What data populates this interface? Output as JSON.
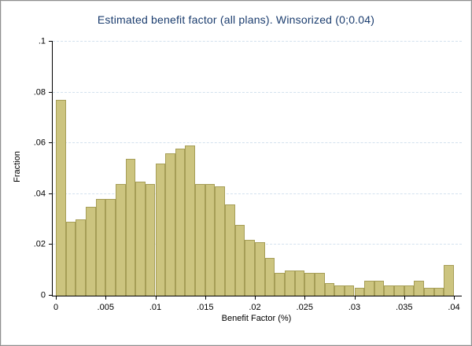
{
  "chart_data": {
    "type": "bar",
    "subtype": "histogram",
    "title": "Estimated benefit factor (all plans). Winsorized (0;0.04)",
    "xlabel": "Benefit Factor (%)",
    "ylabel": "Fraction",
    "xlim": [
      0,
      0.0405
    ],
    "ylim": [
      0,
      0.1
    ],
    "bin_start": 0,
    "bin_width": 0.001,
    "n_bins": 40,
    "values": [
      0.077,
      0.029,
      0.03,
      0.035,
      0.038,
      0.038,
      0.044,
      0.054,
      0.045,
      0.044,
      0.052,
      0.056,
      0.058,
      0.059,
      0.044,
      0.044,
      0.043,
      0.036,
      0.028,
      0.022,
      0.021,
      0.015,
      0.009,
      0.01,
      0.01,
      0.009,
      0.009,
      0.005,
      0.004,
      0.004,
      0.003,
      0.006,
      0.006,
      0.004,
      0.004,
      0.004,
      0.006,
      0.003,
      0.003,
      0.012
    ],
    "xticks": {
      "values": [
        0,
        0.005,
        0.01,
        0.015,
        0.02,
        0.025,
        0.03,
        0.035,
        0.04
      ],
      "labels": [
        "0",
        ".005",
        ".01",
        ".015",
        ".02",
        ".025",
        ".03",
        ".035",
        ".04"
      ]
    },
    "yticks": {
      "values": [
        0,
        0.02,
        0.04,
        0.06,
        0.08,
        0.1
      ],
      "labels": [
        "0",
        ".02",
        ".04",
        ".06",
        ".08",
        ".1"
      ]
    },
    "grid": true,
    "grid_ticks": [
      0.02,
      0.04,
      0.06,
      0.08,
      0.1
    ],
    "legend": "none",
    "colors": {
      "bar_fill": "#ccc47f",
      "bar_stroke": "#a69e57",
      "grid": "#d3e1ee",
      "title": "#1a3c6e",
      "axis": "#000000",
      "tick_text": "#000000",
      "background": "#ffffff"
    }
  }
}
